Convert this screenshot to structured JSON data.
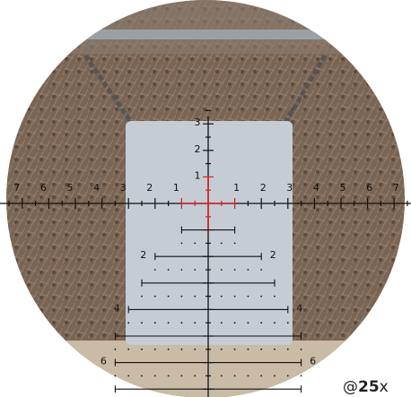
{
  "reticle": {
    "upper_labels": [
      "3",
      "2",
      "1"
    ],
    "left_labels": [
      "7",
      "6",
      "5",
      "4",
      "3",
      "2",
      "1"
    ],
    "right_labels": [
      "1",
      "2",
      "3",
      "4",
      "5",
      "6",
      "7"
    ],
    "lower_labels": [
      {
        "left": "2",
        "right": "2"
      },
      {
        "left": "4",
        "right": "4"
      },
      {
        "left": "6",
        "right": "6"
      }
    ]
  },
  "magnification": {
    "prefix": "@",
    "value": "25",
    "suffix": "x"
  }
}
